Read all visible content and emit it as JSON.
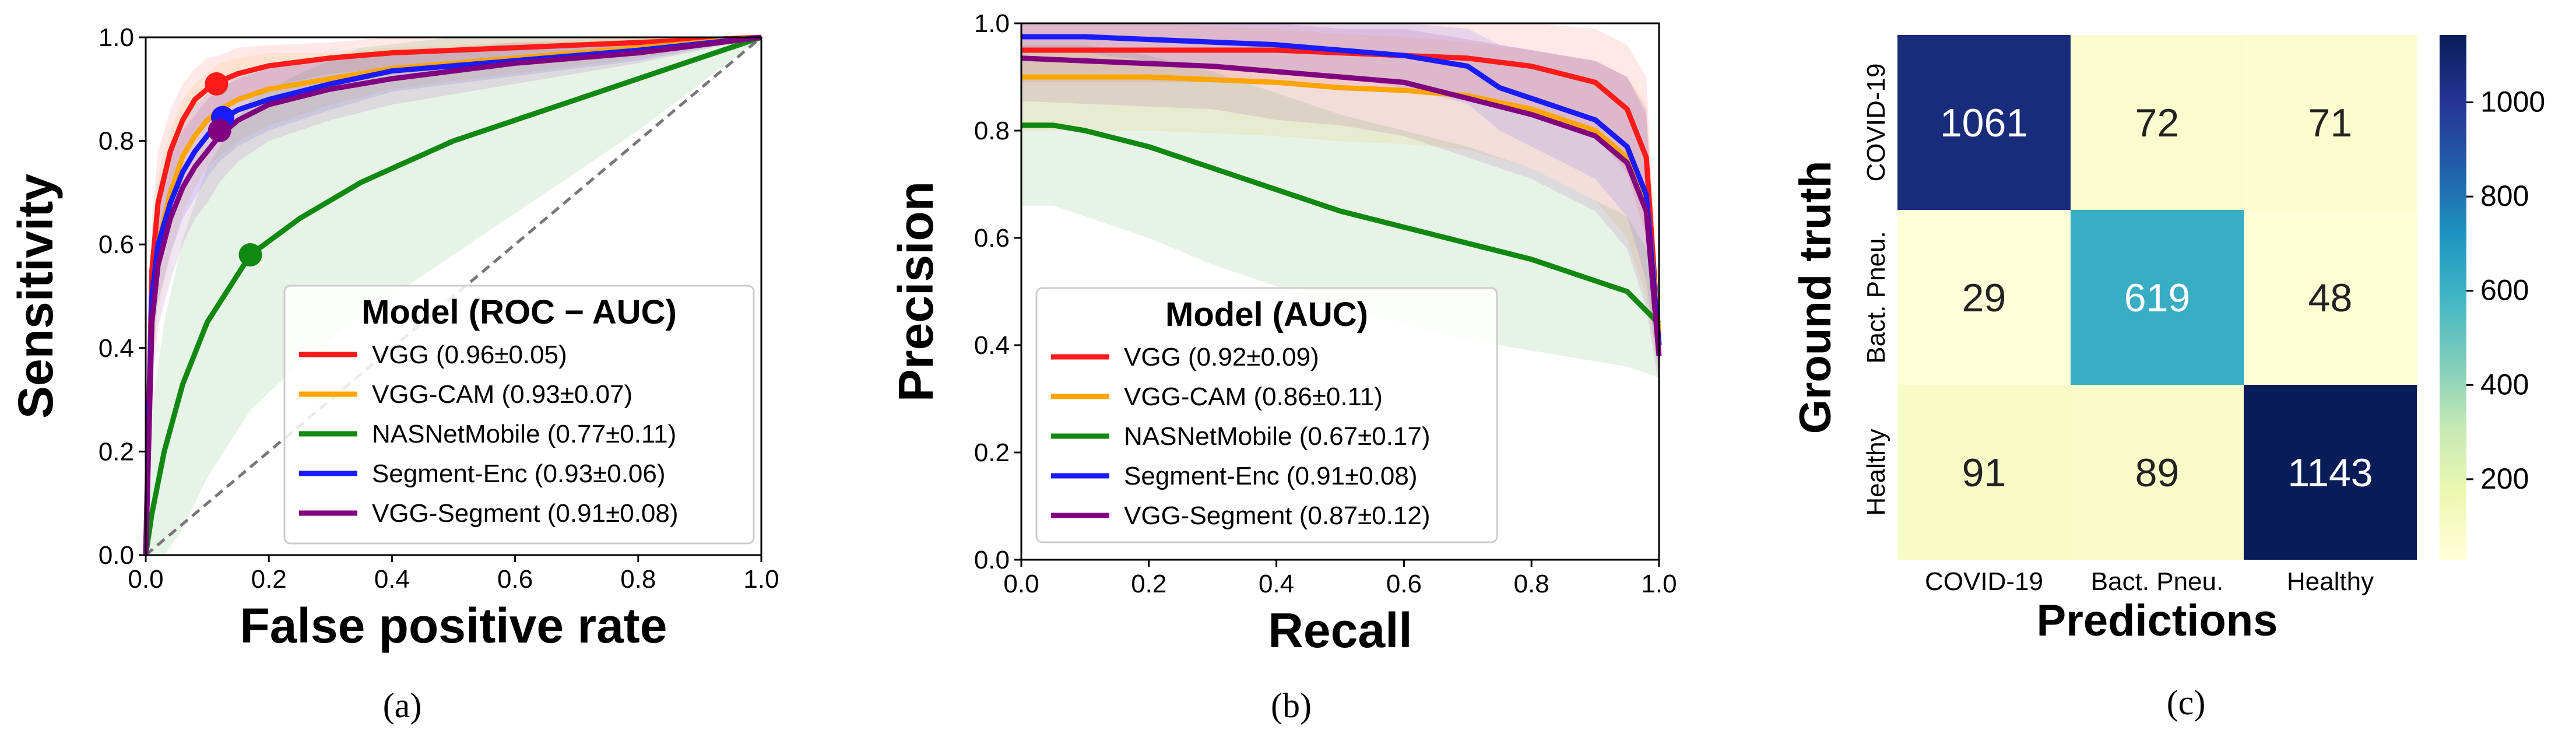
{
  "chart_data": [
    {
      "id": "roc",
      "type": "line",
      "panel_label": "(a)",
      "xlabel": "False positive rate",
      "ylabel": "Sensitivity",
      "xlim": [
        0,
        1
      ],
      "ylim": [
        0,
        1
      ],
      "xticks": [
        "0.0",
        "0.2",
        "0.4",
        "0.6",
        "0.8",
        "1.0"
      ],
      "yticks": [
        "0.0",
        "0.2",
        "0.4",
        "0.6",
        "0.8",
        "1.0"
      ],
      "legend_title": "Model (ROC − AUC)",
      "legend_position": "lower-right",
      "diagonal": true,
      "series": [
        {
          "name": "VGG",
          "label": "VGG (0.96±0.05)",
          "color": "#ff1a1a",
          "x": [
            0,
            0.01,
            0.02,
            0.04,
            0.06,
            0.08,
            0.1,
            0.12,
            0.15,
            0.2,
            0.3,
            0.4,
            0.6,
            0.8,
            1.0
          ],
          "y": [
            0,
            0.55,
            0.68,
            0.78,
            0.84,
            0.88,
            0.9,
            0.915,
            0.93,
            0.945,
            0.96,
            0.97,
            0.98,
            0.99,
            1.0
          ],
          "band": [
            0.12,
            0.1,
            0.1,
            0.08,
            0.07,
            0.06,
            0.06,
            0.05,
            0.05,
            0.04,
            0.03,
            0.03,
            0.02,
            0.01,
            0
          ],
          "marker": [
            0.115,
            0.91
          ]
        },
        {
          "name": "VGG-CAM",
          "label": "VGG-CAM (0.93±0.07)",
          "color": "#ffa500",
          "x": [
            0,
            0.01,
            0.02,
            0.04,
            0.06,
            0.08,
            0.1,
            0.12,
            0.15,
            0.2,
            0.3,
            0.4,
            0.6,
            0.8,
            1.0
          ],
          "y": [
            0,
            0.48,
            0.6,
            0.7,
            0.77,
            0.81,
            0.84,
            0.86,
            0.88,
            0.9,
            0.92,
            0.94,
            0.96,
            0.98,
            1.0
          ],
          "band": [
            0.14,
            0.13,
            0.13,
            0.12,
            0.11,
            0.1,
            0.09,
            0.09,
            0.08,
            0.07,
            0.05,
            0.04,
            0.03,
            0.02,
            0
          ]
        },
        {
          "name": "NASNetMobile",
          "label": "NASNetMobile (0.77±0.11)",
          "color": "#118811",
          "x": [
            0,
            0.01,
            0.03,
            0.06,
            0.1,
            0.17,
            0.25,
            0.35,
            0.5,
            0.6,
            0.7,
            0.8,
            0.9,
            1.0
          ],
          "y": [
            0,
            0.08,
            0.2,
            0.33,
            0.45,
            0.58,
            0.65,
            0.72,
            0.8,
            0.84,
            0.88,
            0.92,
            0.96,
            1.0
          ],
          "band": [
            0.1,
            0.2,
            0.25,
            0.28,
            0.3,
            0.3,
            0.28,
            0.26,
            0.22,
            0.18,
            0.14,
            0.1,
            0.05,
            0
          ],
          "marker": [
            0.17,
            0.58
          ]
        },
        {
          "name": "Segment-Enc",
          "label": "Segment-Enc (0.93±0.06)",
          "color": "#1a1aff",
          "x": [
            0,
            0.01,
            0.02,
            0.04,
            0.06,
            0.08,
            0.1,
            0.12,
            0.15,
            0.2,
            0.3,
            0.4,
            0.6,
            0.8,
            1.0
          ],
          "y": [
            0,
            0.5,
            0.6,
            0.68,
            0.74,
            0.78,
            0.81,
            0.84,
            0.86,
            0.88,
            0.91,
            0.935,
            0.955,
            0.975,
            1.0
          ],
          "band": [
            0.12,
            0.11,
            0.11,
            0.1,
            0.09,
            0.09,
            0.08,
            0.08,
            0.07,
            0.06,
            0.05,
            0.04,
            0.03,
            0.02,
            0
          ],
          "marker": [
            0.125,
            0.845
          ]
        },
        {
          "name": "VGG-Segment",
          "label": "VGG-Segment (0.91±0.08)",
          "color": "#800080",
          "x": [
            0,
            0.01,
            0.02,
            0.04,
            0.06,
            0.08,
            0.1,
            0.12,
            0.15,
            0.2,
            0.3,
            0.4,
            0.6,
            0.8,
            1.0
          ],
          "y": [
            0,
            0.45,
            0.56,
            0.65,
            0.71,
            0.75,
            0.78,
            0.81,
            0.84,
            0.87,
            0.9,
            0.92,
            0.95,
            0.97,
            1.0
          ],
          "band": [
            0.14,
            0.13,
            0.12,
            0.12,
            0.11,
            0.1,
            0.1,
            0.09,
            0.08,
            0.07,
            0.06,
            0.05,
            0.04,
            0.02,
            0
          ],
          "marker": [
            0.12,
            0.82
          ]
        }
      ]
    },
    {
      "id": "pr",
      "type": "line",
      "panel_label": "(b)",
      "xlabel": "Recall",
      "ylabel": "Precision",
      "xlim": [
        0,
        1
      ],
      "ylim": [
        0,
        1
      ],
      "xticks": [
        "0.0",
        "0.2",
        "0.4",
        "0.6",
        "0.8",
        "1.0"
      ],
      "yticks": [
        "0.0",
        "0.2",
        "0.4",
        "0.6",
        "0.8",
        "1.0"
      ],
      "legend_title": "Model (AUC)",
      "legend_position": "lower-center",
      "series": [
        {
          "name": "VGG",
          "label": "VGG (0.92±0.09)",
          "color": "#ff1a1a",
          "x": [
            0,
            0.1,
            0.2,
            0.3,
            0.4,
            0.5,
            0.6,
            0.7,
            0.8,
            0.9,
            0.95,
            0.98,
            1.0
          ],
          "y": [
            0.95,
            0.95,
            0.95,
            0.95,
            0.95,
            0.945,
            0.94,
            0.935,
            0.92,
            0.89,
            0.84,
            0.75,
            0.4
          ],
          "band": [
            0.06,
            0.06,
            0.06,
            0.06,
            0.06,
            0.06,
            0.07,
            0.07,
            0.08,
            0.1,
            0.12,
            0.15,
            0.05
          ]
        },
        {
          "name": "VGG-CAM",
          "label": "VGG-CAM (0.86±0.11)",
          "color": "#ffa500",
          "x": [
            0,
            0.1,
            0.2,
            0.3,
            0.4,
            0.5,
            0.6,
            0.7,
            0.8,
            0.9,
            0.95,
            0.98,
            1.0
          ],
          "y": [
            0.9,
            0.9,
            0.9,
            0.895,
            0.89,
            0.88,
            0.875,
            0.865,
            0.84,
            0.8,
            0.75,
            0.67,
            0.42
          ],
          "band": [
            0.1,
            0.1,
            0.1,
            0.1,
            0.1,
            0.1,
            0.1,
            0.1,
            0.11,
            0.13,
            0.15,
            0.18,
            0.08
          ]
        },
        {
          "name": "NASNetMobile",
          "label": "NASNetMobile (0.67±0.17)",
          "color": "#118811",
          "x": [
            0,
            0.05,
            0.1,
            0.2,
            0.3,
            0.4,
            0.5,
            0.6,
            0.7,
            0.8,
            0.9,
            0.95,
            1.0
          ],
          "y": [
            0.81,
            0.81,
            0.8,
            0.77,
            0.73,
            0.69,
            0.65,
            0.62,
            0.59,
            0.56,
            0.52,
            0.5,
            0.44
          ],
          "band": [
            0.15,
            0.15,
            0.16,
            0.17,
            0.18,
            0.18,
            0.18,
            0.18,
            0.18,
            0.17,
            0.15,
            0.14,
            0.1
          ]
        },
        {
          "name": "Segment-Enc",
          "label": "Segment-Enc (0.91±0.08)",
          "color": "#1a1aff",
          "x": [
            0,
            0.1,
            0.2,
            0.3,
            0.4,
            0.5,
            0.6,
            0.7,
            0.75,
            0.8,
            0.9,
            0.95,
            0.98,
            1.0
          ],
          "y": [
            0.975,
            0.975,
            0.97,
            0.965,
            0.96,
            0.95,
            0.94,
            0.92,
            0.88,
            0.86,
            0.82,
            0.77,
            0.68,
            0.4
          ],
          "band": [
            0.03,
            0.03,
            0.04,
            0.04,
            0.05,
            0.05,
            0.06,
            0.07,
            0.08,
            0.09,
            0.11,
            0.13,
            0.16,
            0.06
          ]
        },
        {
          "name": "VGG-Segment",
          "label": "VGG-Segment (0.87±0.12)",
          "color": "#800080",
          "x": [
            0,
            0.1,
            0.2,
            0.3,
            0.4,
            0.5,
            0.6,
            0.7,
            0.8,
            0.9,
            0.95,
            0.98,
            1.0
          ],
          "y": [
            0.935,
            0.93,
            0.925,
            0.92,
            0.91,
            0.9,
            0.89,
            0.86,
            0.83,
            0.79,
            0.74,
            0.65,
            0.38
          ],
          "band": [
            0.08,
            0.08,
            0.08,
            0.08,
            0.09,
            0.09,
            0.1,
            0.11,
            0.12,
            0.14,
            0.16,
            0.18,
            0.06
          ]
        }
      ]
    },
    {
      "id": "confusion",
      "type": "heatmap",
      "panel_label": "(c)",
      "xlabel": "Predictions",
      "ylabel": "Ground truth",
      "x_categories": [
        "COVID-19",
        "Bact. Pneu.",
        "Healthy"
      ],
      "y_categories": [
        "COVID-19",
        "Bact. Pneu.",
        "Healthy"
      ],
      "values": [
        [
          1061,
          72,
          71
        ],
        [
          29,
          619,
          48
        ],
        [
          91,
          89,
          1143
        ]
      ],
      "colorbar_ticks": [
        "200",
        "400",
        "600",
        "800",
        "1000"
      ],
      "colorbar_range": [
        29,
        1143
      ],
      "colormap": "YlGnBu"
    }
  ]
}
